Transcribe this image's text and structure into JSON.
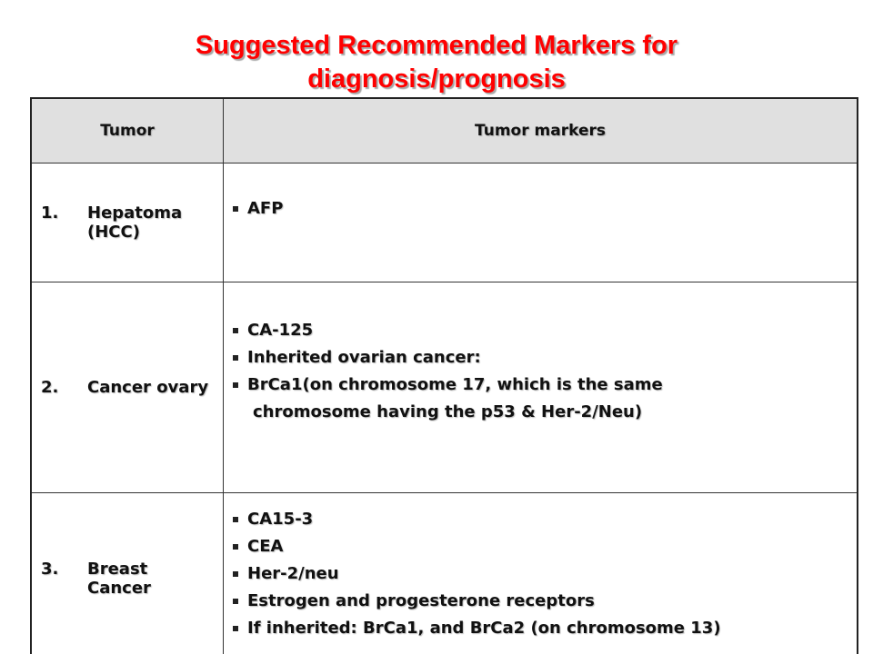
{
  "title": {
    "line1": "Suggested Recommended Markers for",
    "line2": "diagnosis/prognosis"
  },
  "table": {
    "headers": {
      "tumor": "Tumor",
      "markers": "Tumor markers"
    },
    "rows": [
      {
        "number": "1.",
        "tumor": "Hepatoma (HCC)",
        "markers": [
          "AFP"
        ]
      },
      {
        "number": "2.",
        "tumor": "Cancer ovary",
        "markers": [
          "CA-125",
          "Inherited ovarian cancer:",
          "BrCa1(on  chromosome 17, which is the same"
        ],
        "continuation": "chromosome having the p53 & Her-2/Neu)"
      },
      {
        "number": "3.",
        "tumor": "Breast Cancer",
        "markers": [
          "CA15-3",
          "CEA",
          "Her-2/neu",
          "Estrogen and progesterone receptors",
          "If inherited: BrCa1, and BrCa2 (on chromosome 13)"
        ]
      }
    ]
  },
  "colors": {
    "title": "#ff0000",
    "header_bg": "#e0e0e0",
    "text": "#111111"
  }
}
